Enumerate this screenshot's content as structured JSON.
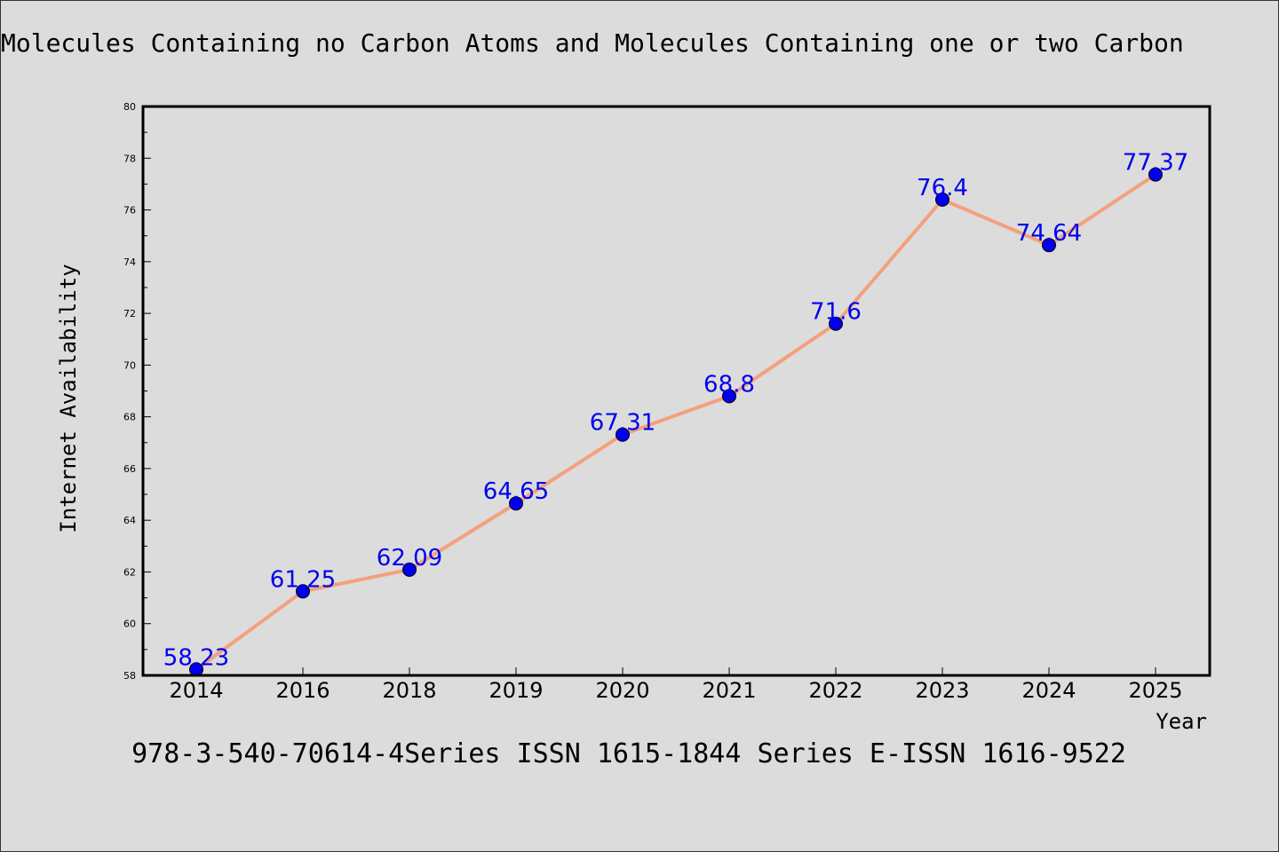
{
  "chart_data": {
    "type": "line",
    "title": "Molecules Containing no Carbon Atoms and Molecules Containing one or two Carbon",
    "xlabel": "Year",
    "ylabel": "Internet Availability",
    "categories": [
      "2014",
      "2016",
      "2018",
      "2019",
      "2020",
      "2021",
      "2022",
      "2023",
      "2024",
      "2025"
    ],
    "series": [
      {
        "values": [
          58.23,
          61.25,
          62.09,
          64.65,
          67.31,
          68.8,
          71.6,
          76.4,
          74.64,
          77.37
        ],
        "data_labels": [
          "58.23",
          "61.25",
          "62.09",
          "64.65",
          "67.31",
          "68.8",
          "71.6",
          "76.4",
          "74.64",
          "77.37"
        ],
        "line_color": "#f4a07e",
        "marker_color": "#0000ee"
      }
    ],
    "ylim": [
      58,
      80
    ],
    "yticks": [
      "58",
      "60",
      "62",
      "64",
      "66",
      "68",
      "70",
      "72",
      "74",
      "76",
      "78",
      "80"
    ],
    "grid": false,
    "label_color": "#0000ee"
  },
  "footer": {
    "text": "978-3-540-70614-4Series ISSN 1615-1844 Series E-ISSN 1616-9522"
  }
}
